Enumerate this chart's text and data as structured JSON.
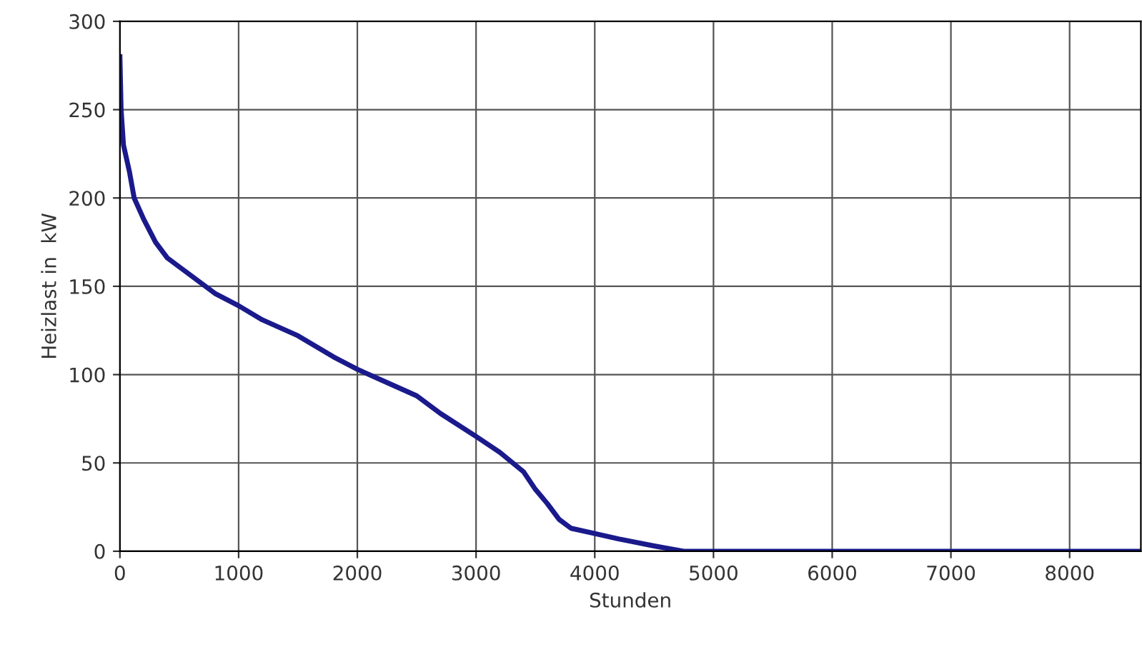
{
  "chart_data": {
    "type": "line",
    "xlabel": "Stunden",
    "ylabel": "Heizlast in  kW",
    "xlim": [
      0,
      8600
    ],
    "ylim": [
      0,
      300
    ],
    "xticks": [
      0,
      1000,
      2000,
      3000,
      4000,
      5000,
      6000,
      7000,
      8000
    ],
    "yticks": [
      0,
      50,
      100,
      150,
      200,
      250,
      300
    ],
    "grid": true,
    "marker": "none",
    "line_style": "solid",
    "series": [
      {
        "color": "#1a1a8c",
        "x": [
          0,
          10,
          30,
          80,
          120,
          200,
          300,
          400,
          600,
          800,
          1000,
          1200,
          1500,
          1800,
          2000,
          2200,
          2500,
          2700,
          3000,
          3200,
          3400,
          3500,
          3600,
          3700,
          3800,
          4000,
          4200,
          4500,
          4750,
          8600
        ],
        "values": [
          280,
          250,
          230,
          215,
          200,
          188,
          175,
          166,
          156,
          146,
          139,
          131,
          122,
          110,
          103,
          97,
          88,
          78,
          65,
          56,
          45,
          35,
          27,
          18,
          13,
          10,
          7,
          3,
          0,
          0
        ]
      }
    ]
  }
}
